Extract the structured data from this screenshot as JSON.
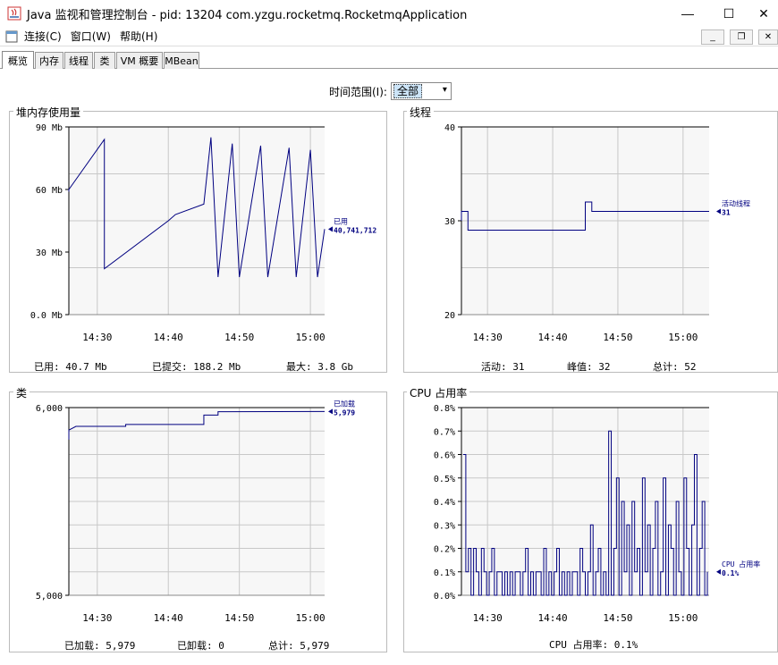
{
  "window": {
    "title": "Java 监视和管理控制台 - pid: 13204 com.yzgu.rocketmq.RocketmqApplication",
    "minimize": "—",
    "maximize": "☐",
    "close": "✕"
  },
  "menu": {
    "items": [
      "连接(C)",
      "窗口(W)",
      "帮助(H)"
    ]
  },
  "mdi": {
    "minimize": "_",
    "restore": "❐",
    "close": "✕"
  },
  "tabs": [
    "概览",
    "内存",
    "线程",
    "类",
    "VM 概要",
    "MBean"
  ],
  "time_range": {
    "label": "时间范围(I):",
    "value": "全部",
    "arrow": "▾"
  },
  "panels": {
    "heap": {
      "title": "堆内存使用量",
      "footer": {
        "used": "已用: 40.7 Mb",
        "committed": "已提交: 188.2 Mb",
        "max": "最大: 3.8 Gb"
      }
    },
    "threads": {
      "title": "线程",
      "footer": {
        "live": "活动: 31",
        "peak": "峰值: 32",
        "total": "总计: 52"
      }
    },
    "classes": {
      "title": "类",
      "footer": {
        "loaded": "已加载: 5,979",
        "unloaded": "已卸载: 0",
        "total": "总计: 5,979"
      }
    },
    "cpu": {
      "title": "CPU 占用率",
      "footer": {
        "usage": "CPU 占用率: 0.1%"
      }
    }
  },
  "chart_data": [
    {
      "type": "line",
      "title": "堆内存使用量",
      "yticks": [
        "0.0 Mb",
        "30 Mb",
        "60 Mb",
        "90 Mb"
      ],
      "ylim": [
        0,
        90
      ],
      "xticks": [
        "14:30",
        "14:40",
        "14:50",
        "15:00"
      ],
      "xlim": [
        "14:26",
        "15:02"
      ],
      "x": [
        "14:26",
        "14:26",
        "14:31",
        "14:31",
        "14:40",
        "14:41",
        "14:45",
        "14:46",
        "14:47",
        "14:49",
        "14:50",
        "14:53",
        "14:54",
        "14:57",
        "14:58",
        "15:00",
        "15:01",
        "15:02"
      ],
      "y": [
        59,
        60,
        84,
        22,
        45,
        48,
        53,
        85,
        18,
        82,
        18,
        81,
        18,
        80,
        18,
        79,
        18,
        41
      ],
      "series": [
        {
          "name": "已用",
          "value_label": "40,741,712",
          "color": "#000080"
        }
      ],
      "grid": true
    },
    {
      "type": "line",
      "title": "线程",
      "yticks": [
        "20",
        "30",
        "40"
      ],
      "ylim": [
        20,
        40
      ],
      "xticks": [
        "14:30",
        "14:40",
        "14:50",
        "15:00"
      ],
      "xlim": [
        "14:26",
        "15:04"
      ],
      "x": [
        "14:26",
        "14:26",
        "14:27",
        "14:27",
        "14:45",
        "14:45",
        "14:46",
        "14:46",
        "15:04"
      ],
      "y": [
        30,
        31,
        31,
        29,
        29,
        32,
        32,
        31,
        31
      ],
      "series": [
        {
          "name": "活动线程",
          "value_label": "31",
          "color": "#000080"
        }
      ],
      "grid": true
    },
    {
      "type": "line",
      "title": "类",
      "yticks": [
        "5,000",
        "6,000"
      ],
      "ylim": [
        5000,
        6000
      ],
      "xticks": [
        "14:30",
        "14:40",
        "14:50",
        "15:00"
      ],
      "xlim": [
        "14:26",
        "15:02"
      ],
      "x": [
        "14:26",
        "14:26",
        "14:27",
        "14:34",
        "14:34",
        "14:45",
        "14:45",
        "14:47",
        "14:47",
        "15:02"
      ],
      "y": [
        5830,
        5880,
        5900,
        5900,
        5910,
        5910,
        5960,
        5960,
        5978,
        5979
      ],
      "series": [
        {
          "name": "已加载",
          "value_label": "5,979",
          "color": "#000080"
        }
      ],
      "grid": true
    },
    {
      "type": "line",
      "title": "CPU 占用率",
      "yticks": [
        "0.0%",
        "0.1%",
        "0.2%",
        "0.3%",
        "0.4%",
        "0.5%",
        "0.6%",
        "0.7%",
        "0.8%"
      ],
      "ylim": [
        0,
        0.8
      ],
      "xticks": [
        "14:30",
        "14:40",
        "14:50",
        "15:00"
      ],
      "xlim": [
        "14:26",
        "15:04"
      ],
      "values": [
        0.6,
        0.1,
        0.2,
        0.0,
        0.2,
        0.1,
        0.0,
        0.2,
        0.1,
        0.0,
        0.1,
        0.2,
        0.0,
        0.1,
        0.1,
        0.0,
        0.1,
        0.0,
        0.1,
        0.0,
        0.1,
        0.1,
        0.0,
        0.1,
        0.2,
        0.0,
        0.1,
        0.0,
        0.1,
        0.1,
        0.0,
        0.2,
        0.0,
        0.1,
        0.0,
        0.1,
        0.2,
        0.0,
        0.1,
        0.0,
        0.1,
        0.0,
        0.1,
        0.1,
        0.0,
        0.2,
        0.1,
        0.0,
        0.1,
        0.3,
        0.0,
        0.1,
        0.2,
        0.0,
        0.1,
        0.0,
        0.7,
        0.0,
        0.2,
        0.5,
        0.0,
        0.4,
        0.1,
        0.3,
        0.0,
        0.4,
        0.1,
        0.2,
        0.0,
        0.5,
        0.1,
        0.3,
        0.0,
        0.2,
        0.4,
        0.0,
        0.1,
        0.5,
        0.0,
        0.3,
        0.2,
        0.0,
        0.4,
        0.1,
        0.0,
        0.5,
        0.2,
        0.0,
        0.3,
        0.6,
        0.0,
        0.2,
        0.4,
        0.0,
        0.1
      ],
      "series": [
        {
          "name": "CPU 占用率",
          "value_label": "0.1%",
          "color": "#000080"
        }
      ],
      "grid": true
    }
  ]
}
